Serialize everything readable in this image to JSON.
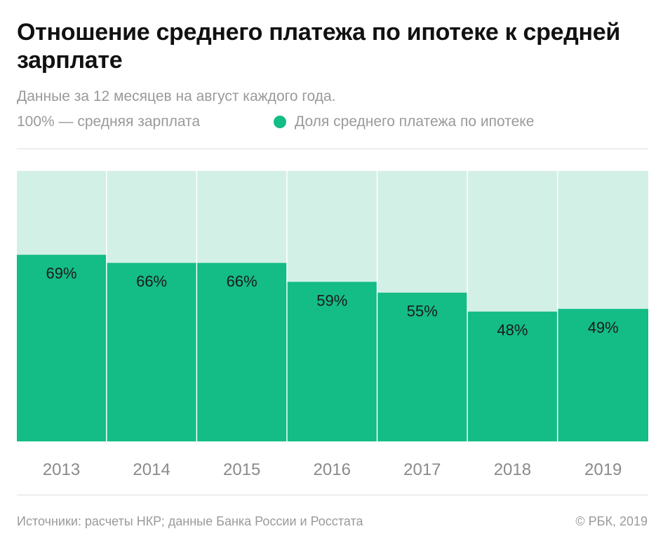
{
  "header": {
    "title": "Отношение среднего платежа по ипотеке к средней зарплате",
    "subtitle": "Данные за 12 месяцев на август каждого года."
  },
  "legend": {
    "base_label": "100% — средняя зарплата",
    "share_label": "Доля среднего платежа по ипотеке"
  },
  "colors": {
    "share": "#14bc86",
    "base": "#d3f0e6",
    "value_text": "#1a1a1a",
    "axis_text": "#8a8a8a"
  },
  "chart_data": {
    "type": "bar",
    "categories": [
      "2013",
      "2014",
      "2015",
      "2016",
      "2017",
      "2018",
      "2019"
    ],
    "values": [
      69,
      66,
      66,
      59,
      55,
      48,
      49
    ],
    "value_labels": [
      "69%",
      "66%",
      "66%",
      "59%",
      "55%",
      "48%",
      "49%"
    ],
    "ylim": [
      0,
      100
    ],
    "background_value": 100,
    "series": [
      {
        "name": "Доля среднего платежа по ипотеке",
        "values": [
          69,
          66,
          66,
          59,
          55,
          48,
          49
        ]
      }
    ],
    "grid": false,
    "legend_position": "top-left"
  },
  "footer": {
    "source": "Источники: расчеты НКР; данные Банка России и Росстата",
    "copyright": "© РБК, 2019"
  }
}
